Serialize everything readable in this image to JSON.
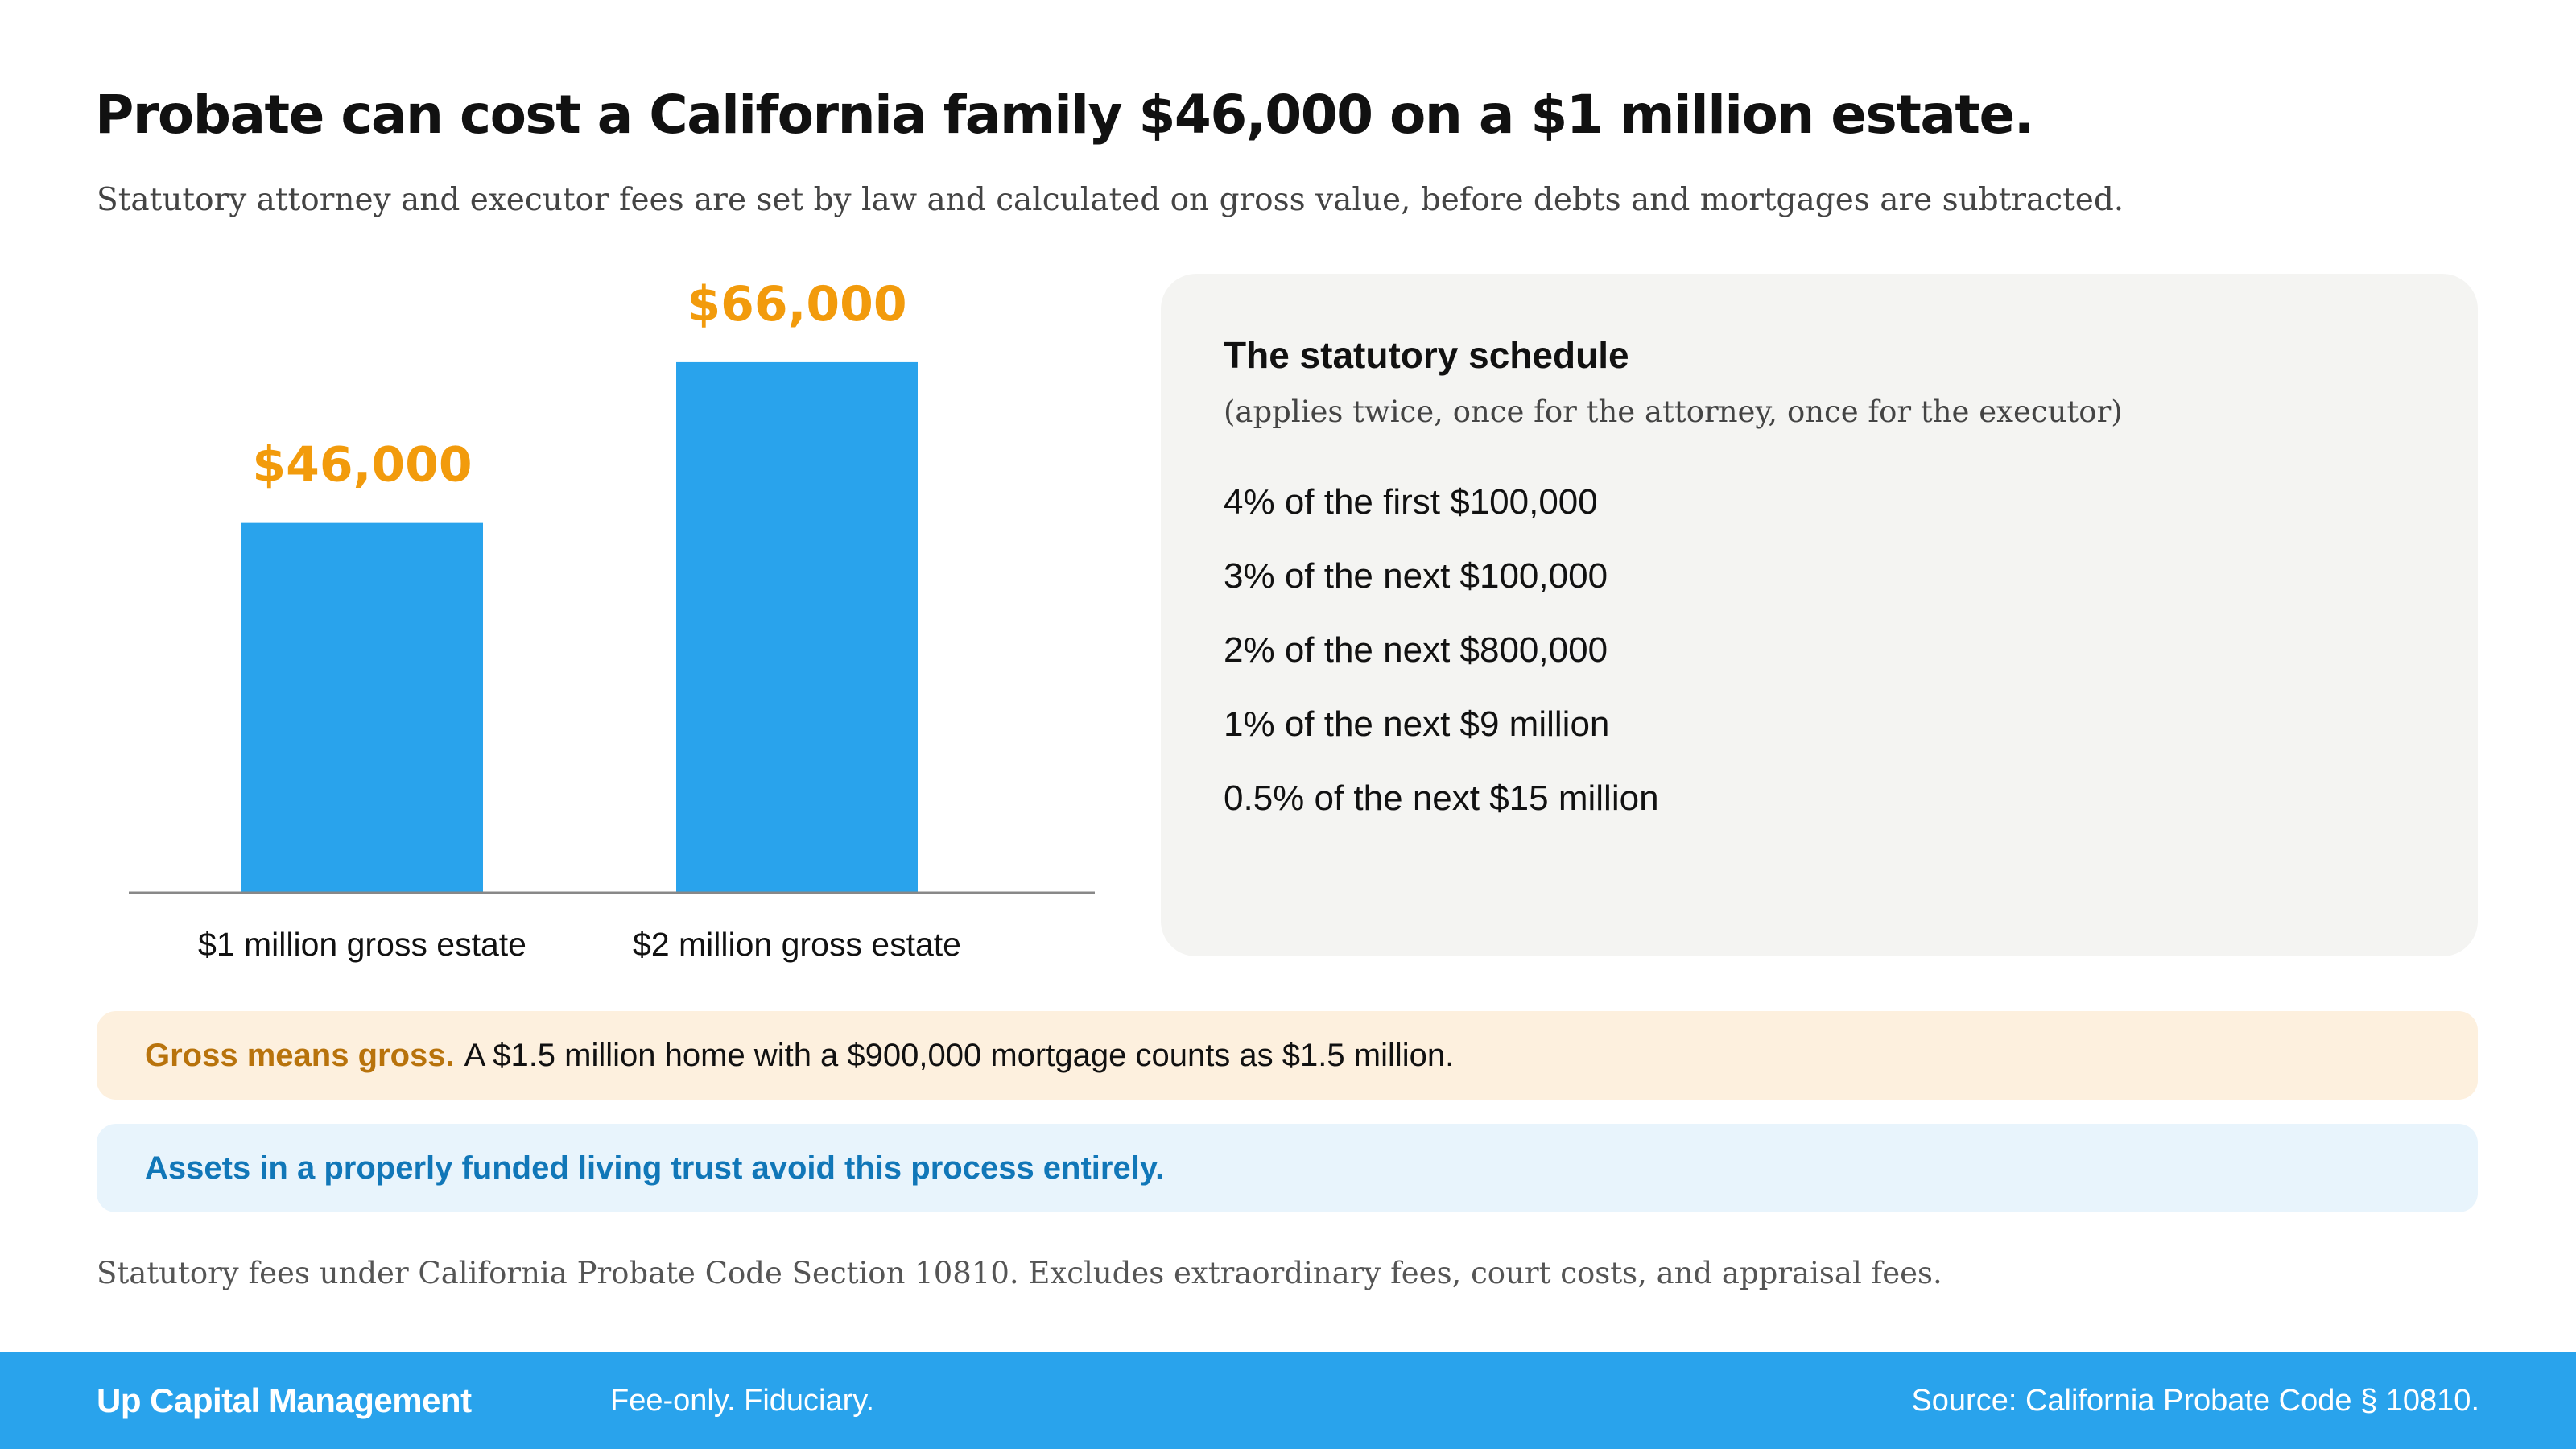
{
  "header": {
    "title": "Probate can cost a California family $46,000 on a $1 million estate.",
    "subtitle": "Statutory attorney and executor fees are set by law and calculated on gross value, before debts and mortgages are subtracted."
  },
  "chart_data": {
    "type": "bar",
    "title": "",
    "xlabel": "",
    "ylabel": "",
    "categories": [
      "$1 million gross estate",
      "$2 million gross estate"
    ],
    "values": [
      46000,
      66000
    ],
    "value_labels": [
      "$46,000",
      "$66,000"
    ],
    "ylim": [
      0,
      72000
    ],
    "grid": false,
    "legend": "none",
    "bar_color": "#29a3ec",
    "value_label_color": "#f29b0c"
  },
  "schedule": {
    "title": "The statutory schedule",
    "subtitle": "(applies twice, once for the attorney, once for the executor)",
    "items": [
      "4% of the first $100,000",
      "3% of the next $100,000",
      "2% of the next $800,000",
      "1% of the next $9 million",
      "0.5% of the next $15 million"
    ]
  },
  "callouts": {
    "gross_lead": "Gross means gross.",
    "gross_text": "A $1.5 million home with a $900,000 mortgage counts as $1.5 million.",
    "trust_text": "Assets in a properly funded living trust avoid this process entirely."
  },
  "footnote": "Statutory fees under California Probate Code Section 10810. Excludes extraordinary fees, court costs, and appraisal fees.",
  "footer": {
    "brand": "Up Capital Management",
    "tagline": "Fee-only. Fiduciary.",
    "source": "Source: California Probate Code § 10810."
  },
  "colors": {
    "accent_blue": "#29a3ec",
    "accent_orange": "#f29b0c",
    "gross_bg": "#fdf0de",
    "trust_bg": "#e8f4fc",
    "panel_bg": "#f4f4f2"
  }
}
